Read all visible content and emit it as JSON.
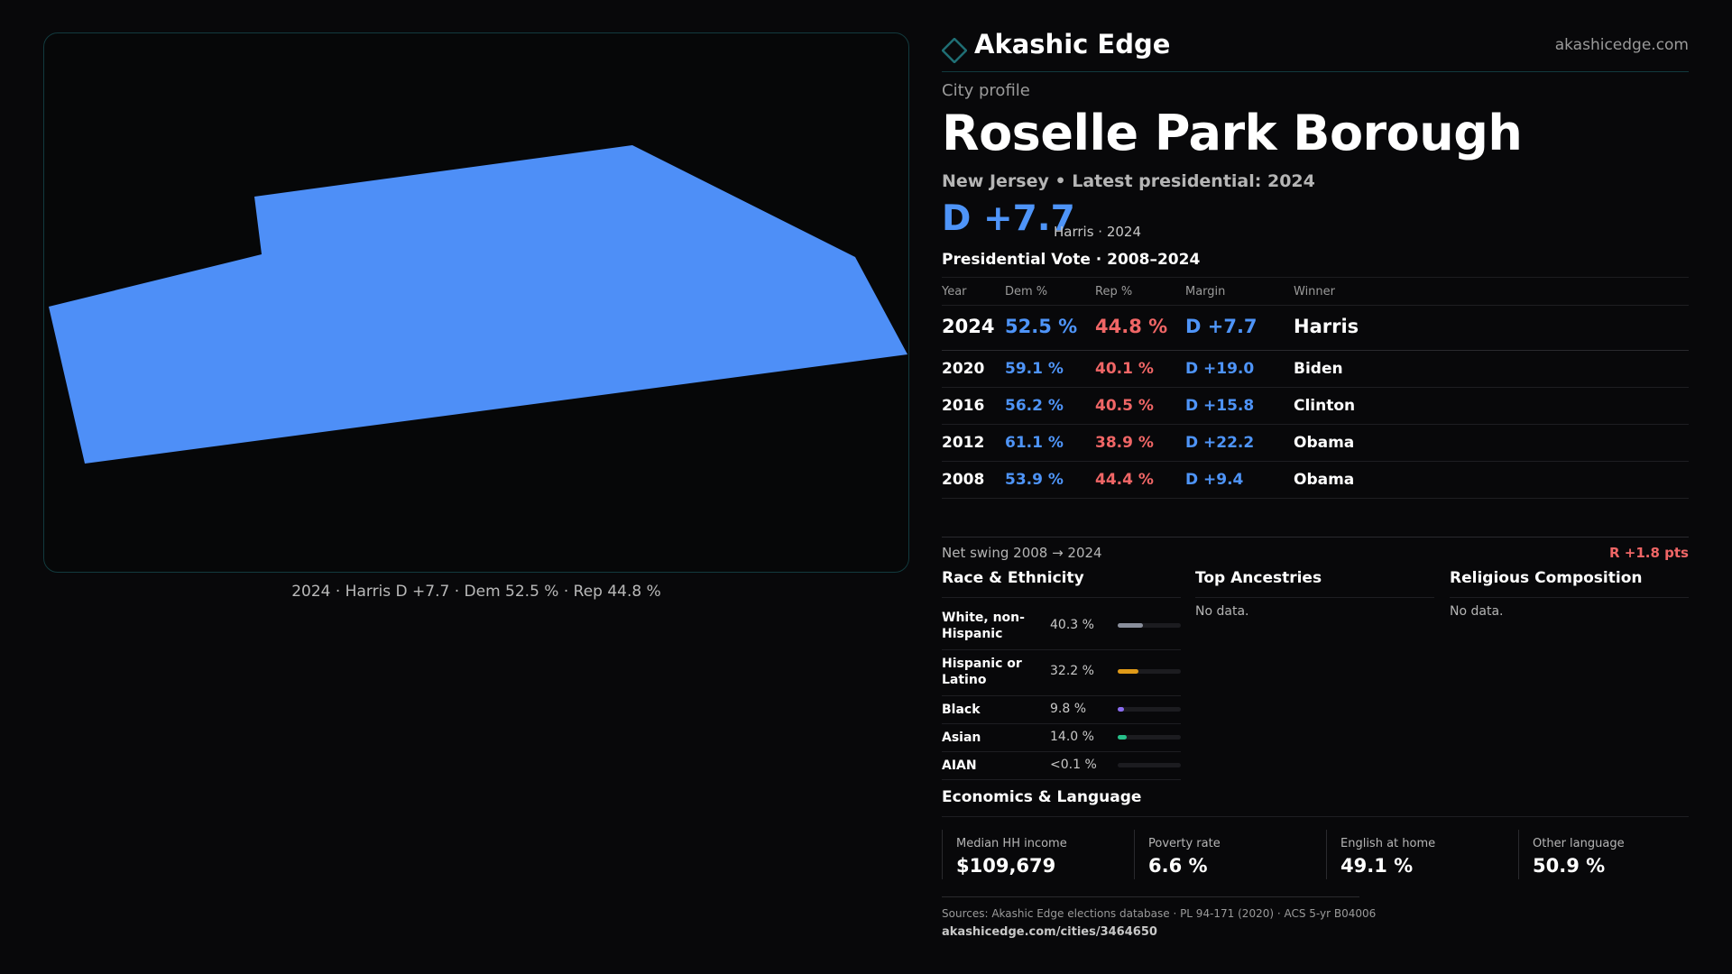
{
  "map": {
    "fill_color": "#4e8ff7",
    "caption": "2024 · Harris D +7.7 · Dem 52.5 % · Rep 44.8 %"
  },
  "brand": {
    "icon": "diamond-icon",
    "name": "Akashic Edge",
    "url": "akashicedge.com"
  },
  "profile": {
    "kicker": "City profile",
    "name": "Roselle Park Borough",
    "subtitle": "New Jersey • Latest presidential: 2024",
    "margin": "D +7.7",
    "margin_detail": "Harris · 2024"
  },
  "vote": {
    "title": "Presidential Vote · 2008–2024",
    "headers": {
      "year": "Year",
      "dem": "Dem %",
      "rep": "Rep %",
      "margin": "Margin",
      "winner": "Winner"
    },
    "rows": [
      {
        "year": "2024",
        "dem": "52.5 %",
        "rep": "44.8 %",
        "margin": "D +7.7",
        "winner": "Harris"
      },
      {
        "year": "2020",
        "dem": "59.1 %",
        "rep": "40.1 %",
        "margin": "D +19.0",
        "winner": "Biden"
      },
      {
        "year": "2016",
        "dem": "56.2 %",
        "rep": "40.5 %",
        "margin": "D +15.8",
        "winner": "Clinton"
      },
      {
        "year": "2012",
        "dem": "61.1 %",
        "rep": "38.9 %",
        "margin": "D +22.2",
        "winner": "Obama"
      },
      {
        "year": "2008",
        "dem": "53.9 %",
        "rep": "44.4 %",
        "margin": "D +9.4",
        "winner": "Obama"
      }
    ],
    "swing_label": "Net swing 2008 → 2024",
    "swing_value": "R +1.8 pts"
  },
  "race": {
    "title": "Race & Ethnicity",
    "rows": [
      {
        "label": "White, non-Hispanic",
        "pct": "40.3 %",
        "fraction": 0.403,
        "color": "#8a8f9c"
      },
      {
        "label": "Hispanic or Latino",
        "pct": "32.2 %",
        "fraction": 0.322,
        "color": "#e09a18"
      },
      {
        "label": "Black",
        "pct": "9.8 %",
        "fraction": 0.098,
        "color": "#8a6cf0"
      },
      {
        "label": "Asian",
        "pct": "14.0 %",
        "fraction": 0.14,
        "color": "#27c08a"
      },
      {
        "label": "AIAN",
        "pct": "<0.1 %",
        "fraction": 0.0,
        "color": "#8a8f9c"
      }
    ]
  },
  "ancestries": {
    "title": "Top Ancestries",
    "empty": "No data."
  },
  "religion": {
    "title": "Religious Composition",
    "empty": "No data."
  },
  "economics": {
    "title": "Economics & Language",
    "items": [
      {
        "label": "Median HH income",
        "value": "$109,679"
      },
      {
        "label": "Poverty rate",
        "value": "6.6 %"
      },
      {
        "label": "English at home",
        "value": "49.1 %"
      },
      {
        "label": "Other language",
        "value": "50.9 %"
      }
    ]
  },
  "footer": {
    "sources": "Sources: Akashic Edge elections database · PL 94-171 (2020) · ACS 5-yr B04006",
    "url": "akashicedge.com/cities/3464650"
  }
}
